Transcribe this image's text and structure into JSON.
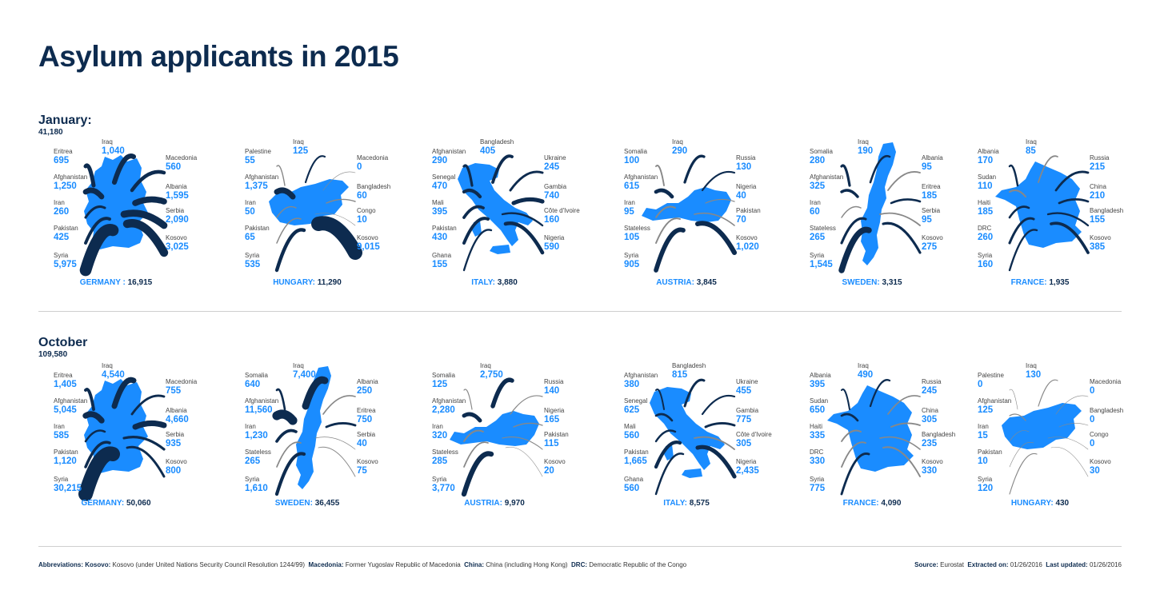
{
  "title": "Asylum applicants in 2015",
  "chart_data": [
    {
      "type": "map",
      "period": "January:",
      "total": "41,180",
      "countries": [
        {
          "name": "GERMANY :",
          "total": "16,915",
          "shape": "germany",
          "origins": [
            {
              "label": "Iraq",
              "value": "1,040",
              "n": 1040
            },
            {
              "label": "Eritrea",
              "value": "695",
              "n": 695
            },
            {
              "label": "Afghanistan",
              "value": "1,250",
              "n": 1250
            },
            {
              "label": "Iran",
              "value": "260",
              "n": 260
            },
            {
              "label": "Pakistan",
              "value": "425",
              "n": 425
            },
            {
              "label": "Syria",
              "value": "5,975",
              "n": 5975
            },
            {
              "label": "Macedonia",
              "value": "560",
              "n": 560
            },
            {
              "label": "Albania",
              "value": "1,595",
              "n": 1595
            },
            {
              "label": "Serbia",
              "value": "2,090",
              "n": 2090
            },
            {
              "label": "Kosovo",
              "value": "3,025",
              "n": 3025
            }
          ]
        },
        {
          "name": "HUNGARY:",
          "total": "11,290",
          "shape": "hungary",
          "origins": [
            {
              "label": "Iraq",
              "value": "125",
              "n": 125
            },
            {
              "label": "Palestine",
              "value": "55",
              "n": 55
            },
            {
              "label": "Afghanistan",
              "value": "1,375",
              "n": 1375
            },
            {
              "label": "Iran",
              "value": "50",
              "n": 50
            },
            {
              "label": "Pakistan",
              "value": "65",
              "n": 65
            },
            {
              "label": "Syria",
              "value": "535",
              "n": 535
            },
            {
              "label": "Macedonia",
              "value": "0",
              "n": 0
            },
            {
              "label": "Bangladesh",
              "value": "60",
              "n": 60
            },
            {
              "label": "Congo",
              "value": "10",
              "n": 10
            },
            {
              "label": "Kosovo",
              "value": "9,015",
              "n": 9015
            }
          ]
        },
        {
          "name": "ITALY:",
          "total": "3,880",
          "shape": "italy",
          "origins": [
            {
              "label": "Bangladesh",
              "value": "405",
              "n": 405
            },
            {
              "label": "Afghanistan",
              "value": "290",
              "n": 290
            },
            {
              "label": "Senegal",
              "value": "470",
              "n": 470
            },
            {
              "label": "Mali",
              "value": "395",
              "n": 395
            },
            {
              "label": "Pakistan",
              "value": "430",
              "n": 430
            },
            {
              "label": "Ghana",
              "value": "155",
              "n": 155
            },
            {
              "label": "Ukraine",
              "value": "245",
              "n": 245
            },
            {
              "label": "Gambia",
              "value": "740",
              "n": 740
            },
            {
              "label": "Côte d'Ivoire",
              "value": "160",
              "n": 160
            },
            {
              "label": "Nigeria",
              "value": "590",
              "n": 590
            }
          ]
        },
        {
          "name": "AUSTRIA:",
          "total": "3,845",
          "shape": "austria",
          "origins": [
            {
              "label": "Iraq",
              "value": "290",
              "n": 290
            },
            {
              "label": "Somalia",
              "value": "100",
              "n": 100
            },
            {
              "label": "Afghanistan",
              "value": "615",
              "n": 615
            },
            {
              "label": "Iran",
              "value": "95",
              "n": 95
            },
            {
              "label": "Stateless",
              "value": "105",
              "n": 105
            },
            {
              "label": "Syria",
              "value": "905",
              "n": 905
            },
            {
              "label": "Russia",
              "value": "130",
              "n": 130
            },
            {
              "label": "Nigeria",
              "value": "40",
              "n": 40
            },
            {
              "label": "Pakistan",
              "value": "70",
              "n": 70
            },
            {
              "label": "Kosovo",
              "value": "1,020",
              "n": 1020
            }
          ]
        },
        {
          "name": "SWEDEN:",
          "total": "3,315",
          "shape": "sweden",
          "origins": [
            {
              "label": "Iraq",
              "value": "190",
              "n": 190
            },
            {
              "label": "Somalia",
              "value": "280",
              "n": 280
            },
            {
              "label": "Afghanistan",
              "value": "325",
              "n": 325
            },
            {
              "label": "Iran",
              "value": "60",
              "n": 60
            },
            {
              "label": "Stateless",
              "value": "265",
              "n": 265
            },
            {
              "label": "Syria",
              "value": "1,545",
              "n": 1545
            },
            {
              "label": "Albania",
              "value": "95",
              "n": 95
            },
            {
              "label": "Eritrea",
              "value": "185",
              "n": 185
            },
            {
              "label": "Serbia",
              "value": "95",
              "n": 95
            },
            {
              "label": "Kosovo",
              "value": "275",
              "n": 275
            }
          ]
        },
        {
          "name": "FRANCE:",
          "total": "1,935",
          "shape": "france",
          "origins": [
            {
              "label": "Iraq",
              "value": "85",
              "n": 85
            },
            {
              "label": "Albania",
              "value": "170",
              "n": 170
            },
            {
              "label": "Sudan",
              "value": "110",
              "n": 110
            },
            {
              "label": "Haiti",
              "value": "185",
              "n": 185
            },
            {
              "label": "DRC",
              "value": "260",
              "n": 260
            },
            {
              "label": "Syria",
              "value": "160",
              "n": 160
            },
            {
              "label": "Russia",
              "value": "215",
              "n": 215
            },
            {
              "label": "China",
              "value": "210",
              "n": 210
            },
            {
              "label": "Bangladesh",
              "value": "155",
              "n": 155
            },
            {
              "label": "Kosovo",
              "value": "385",
              "n": 385
            }
          ]
        }
      ]
    },
    {
      "type": "map",
      "period": "October",
      "total": "109,580",
      "countries": [
        {
          "name": "GERMANY:",
          "total": "50,060",
          "shape": "germany",
          "origins": [
            {
              "label": "Iraq",
              "value": "4,540",
              "n": 4540
            },
            {
              "label": "Eritrea",
              "value": "1,405",
              "n": 1405
            },
            {
              "label": "Afghanistan",
              "value": "5,045",
              "n": 5045
            },
            {
              "label": "Iran",
              "value": "585",
              "n": 585
            },
            {
              "label": "Pakistan",
              "value": "1,120",
              "n": 1120
            },
            {
              "label": "Syria",
              "value": "30,215",
              "n": 30215
            },
            {
              "label": "Macedonia",
              "value": "755",
              "n": 755
            },
            {
              "label": "Albania",
              "value": "4,660",
              "n": 4660
            },
            {
              "label": "Serbia",
              "value": "935",
              "n": 935
            },
            {
              "label": "Kosovo",
              "value": "800",
              "n": 800
            }
          ]
        },
        {
          "name": "SWEDEN:",
          "total": "36,455",
          "shape": "sweden",
          "origins": [
            {
              "label": "Iraq",
              "value": "7,400",
              "n": 7400
            },
            {
              "label": "Somalia",
              "value": "640",
              "n": 640
            },
            {
              "label": "Afghanistan",
              "value": "11,560",
              "n": 11560
            },
            {
              "label": "Iran",
              "value": "1,230",
              "n": 1230
            },
            {
              "label": "Stateless",
              "value": "265",
              "n": 265
            },
            {
              "label": "Syria",
              "value": "1,610",
              "n": 1610
            },
            {
              "label": "Albania",
              "value": "250",
              "n": 250
            },
            {
              "label": "Eritrea",
              "value": "750",
              "n": 750
            },
            {
              "label": "Serbia",
              "value": "40",
              "n": 40
            },
            {
              "label": "Kosovo",
              "value": "75",
              "n": 75
            }
          ]
        },
        {
          "name": "AUSTRIA:",
          "total": "9,970",
          "shape": "austria",
          "origins": [
            {
              "label": "Iraq",
              "value": "2,750",
              "n": 2750
            },
            {
              "label": "Somalia",
              "value": "125",
              "n": 125
            },
            {
              "label": "Afghanistan",
              "value": "2,280",
              "n": 2280
            },
            {
              "label": "Iran",
              "value": "320",
              "n": 320
            },
            {
              "label": "Stateless",
              "value": "285",
              "n": 285
            },
            {
              "label": "Syria",
              "value": "3,770",
              "n": 3770
            },
            {
              "label": "Russia",
              "value": "140",
              "n": 140
            },
            {
              "label": "Nigeria",
              "value": "165",
              "n": 165
            },
            {
              "label": "Pakistan",
              "value": "115",
              "n": 115
            },
            {
              "label": "Kosovo",
              "value": "20",
              "n": 20
            }
          ]
        },
        {
          "name": "ITALY:",
          "total": "8,575",
          "shape": "italy",
          "origins": [
            {
              "label": "Bangladesh",
              "value": "815",
              "n": 815
            },
            {
              "label": "Afghanistan",
              "value": "380",
              "n": 380
            },
            {
              "label": "Senegal",
              "value": "625",
              "n": 625
            },
            {
              "label": "Mali",
              "value": "560",
              "n": 560
            },
            {
              "label": "Pakistan",
              "value": "1,665",
              "n": 1665
            },
            {
              "label": "Ghana",
              "value": "560",
              "n": 560
            },
            {
              "label": "Ukraine",
              "value": "455",
              "n": 455
            },
            {
              "label": "Gambia",
              "value": "775",
              "n": 775
            },
            {
              "label": "Côte d'Ivoire",
              "value": "305",
              "n": 305
            },
            {
              "label": "Nigeria",
              "value": "2,435",
              "n": 2435
            }
          ]
        },
        {
          "name": "FRANCE:",
          "total": "4,090",
          "shape": "france",
          "origins": [
            {
              "label": "Iraq",
              "value": "490",
              "n": 490
            },
            {
              "label": "Albania",
              "value": "395",
              "n": 395
            },
            {
              "label": "Sudan",
              "value": "650",
              "n": 650
            },
            {
              "label": "Haiti",
              "value": "335",
              "n": 335
            },
            {
              "label": "DRC",
              "value": "330",
              "n": 330
            },
            {
              "label": "Syria",
              "value": "775",
              "n": 775
            },
            {
              "label": "Russia",
              "value": "245",
              "n": 245
            },
            {
              "label": "China",
              "value": "305",
              "n": 305
            },
            {
              "label": "Bangladesh",
              "value": "235",
              "n": 235
            },
            {
              "label": "Kosovo",
              "value": "330",
              "n": 330
            }
          ]
        },
        {
          "name": "HUNGARY:",
          "total": "430",
          "shape": "hungary",
          "origins": [
            {
              "label": "Iraq",
              "value": "130",
              "n": 130
            },
            {
              "label": "Palestine",
              "value": "0",
              "n": 0
            },
            {
              "label": "Afghanistan",
              "value": "125",
              "n": 125
            },
            {
              "label": "Iran",
              "value": "15",
              "n": 15
            },
            {
              "label": "Pakistan",
              "value": "10",
              "n": 10
            },
            {
              "label": "Syria",
              "value": "120",
              "n": 120
            },
            {
              "label": "Macedonia",
              "value": "0",
              "n": 0
            },
            {
              "label": "Bangladesh",
              "value": "0",
              "n": 0
            },
            {
              "label": "Congo",
              "value": "0",
              "n": 0
            },
            {
              "label": "Kosovo",
              "value": "30",
              "n": 30
            }
          ]
        }
      ]
    }
  ],
  "colors": {
    "map": "#1a8cff",
    "dark": "#0d2b4f",
    "label_value": "#1a8cff",
    "line": "#888888"
  },
  "footer": {
    "abbr_title": "Abbreviations:",
    "abbr": [
      {
        "k": "Kosovo:",
        "v": "Kosovo (under United Nations Security Council Resolution 1244/99)"
      },
      {
        "k": "Macedonia:",
        "v": "Former Yugoslav Republic of Macedonia"
      },
      {
        "k": "China:",
        "v": "China (including Hong Kong)"
      },
      {
        "k": "DRC:",
        "v": "Democratic Republic of the Congo"
      }
    ],
    "source_k": "Source:",
    "source_v": "Eurostat",
    "extracted_k": "Extracted on:",
    "extracted_v": "01/26/2016",
    "updated_k": "Last updated:",
    "updated_v": "01/26/2016"
  }
}
